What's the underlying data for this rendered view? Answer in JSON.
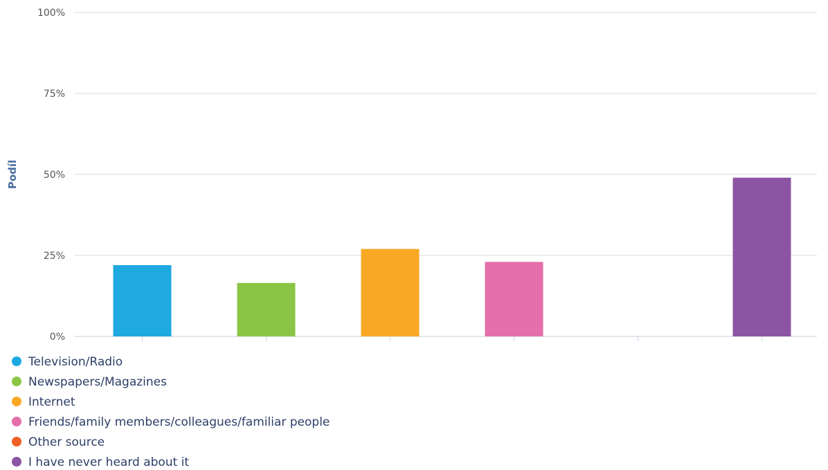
{
  "colors": {
    "grid": "#d8d8d8",
    "axis": "#c8d0dc",
    "tick_text": "#555555",
    "ylabel": "#4a6fa0",
    "legend_text": "#2c3e66"
  },
  "chart_data": {
    "type": "bar",
    "ylabel": "Podíl",
    "ylim": [
      0,
      100
    ],
    "yticks": [
      0,
      25,
      50,
      75,
      100
    ],
    "ytick_labels": [
      "0%",
      "25%",
      "50%",
      "75%",
      "100%"
    ],
    "grid": true,
    "legend_position": "bottom-left",
    "series": [
      {
        "name": "Television/Radio",
        "value": 22,
        "color": "#1ea9e1"
      },
      {
        "name": "Newspapers/Magazines",
        "value": 16.5,
        "color": "#8bc545"
      },
      {
        "name": "Internet",
        "value": 27,
        "color": "#f9a825"
      },
      {
        "name": "Friends/family members/colleagues/familiar people",
        "value": 23,
        "color": "#e46faa"
      },
      {
        "name": "Other source",
        "value": 0,
        "color": "#f05f24"
      },
      {
        "name": "I have never heard about it",
        "value": 49,
        "color": "#8c55a3"
      }
    ]
  }
}
